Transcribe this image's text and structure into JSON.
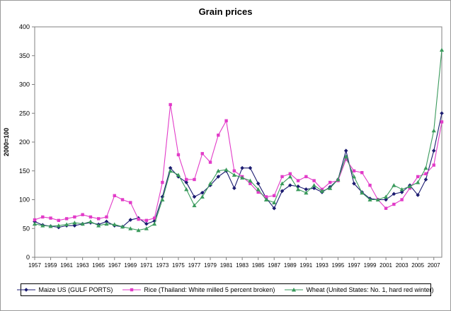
{
  "chart_data": {
    "type": "line",
    "title": "Grain prices",
    "xlabel": "",
    "ylabel": "2000=100",
    "ylim": [
      0,
      400
    ],
    "ytick_step": 50,
    "grid": false,
    "legend_position": "bottom",
    "x": [
      1957,
      1958,
      1959,
      1960,
      1961,
      1962,
      1963,
      1964,
      1965,
      1966,
      1967,
      1968,
      1969,
      1970,
      1971,
      1972,
      1973,
      1974,
      1975,
      1976,
      1977,
      1978,
      1979,
      1980,
      1981,
      1982,
      1983,
      1984,
      1985,
      1986,
      1987,
      1988,
      1989,
      1990,
      1991,
      1992,
      1993,
      1994,
      1995,
      1996,
      1997,
      1998,
      1999,
      2000,
      2001,
      2002,
      2003,
      2004,
      2005,
      2006,
      2007,
      2008
    ],
    "xtick_labels": [
      "1957",
      "1959",
      "1961",
      "1963",
      "1965",
      "1967",
      "1969",
      "1971",
      "1973",
      "1975",
      "1977",
      "1979",
      "1981",
      "1983",
      "1985",
      "1987",
      "1989",
      "1991",
      "1993",
      "1995",
      "1997",
      "1999",
      "2001",
      "2003",
      "2005",
      "2007"
    ],
    "series": [
      {
        "name": "Maize US (GULF PORTS)",
        "color": "#1b1b70",
        "marker": "diamond",
        "values": [
          62,
          56,
          54,
          52,
          55,
          55,
          58,
          60,
          57,
          62,
          55,
          53,
          65,
          68,
          58,
          63,
          105,
          155,
          140,
          130,
          105,
          112,
          125,
          140,
          150,
          120,
          155,
          155,
          128,
          103,
          85,
          115,
          125,
          123,
          118,
          120,
          113,
          122,
          135,
          185,
          128,
          113,
          102,
          100,
          100,
          110,
          113,
          125,
          108,
          135,
          185,
          250
        ]
      },
      {
        "name": "Rice (Thailand: White milled 5 percent broken)",
        "color": "#e23bc8",
        "marker": "square",
        "values": [
          65,
          70,
          68,
          64,
          67,
          70,
          74,
          70,
          67,
          70,
          107,
          100,
          95,
          66,
          64,
          68,
          130,
          265,
          178,
          135,
          135,
          180,
          165,
          212,
          237,
          150,
          140,
          128,
          113,
          105,
          107,
          140,
          145,
          133,
          140,
          133,
          118,
          130,
          133,
          170,
          150,
          147,
          125,
          100,
          85,
          92,
          100,
          120,
          140,
          145,
          160,
          235
        ]
      },
      {
        "name": "Wheat (United States: No. 1, hard red winter)",
        "color": "#3a9a5c",
        "marker": "triangle",
        "values": [
          58,
          55,
          54,
          55,
          57,
          60,
          58,
          62,
          55,
          58,
          57,
          53,
          50,
          47,
          50,
          58,
          100,
          150,
          143,
          118,
          90,
          105,
          128,
          150,
          152,
          143,
          138,
          133,
          118,
          100,
          95,
          128,
          140,
          118,
          112,
          125,
          115,
          120,
          135,
          175,
          140,
          112,
          100,
          100,
          105,
          125,
          118,
          123,
          130,
          155,
          220,
          360
        ]
      }
    ]
  }
}
